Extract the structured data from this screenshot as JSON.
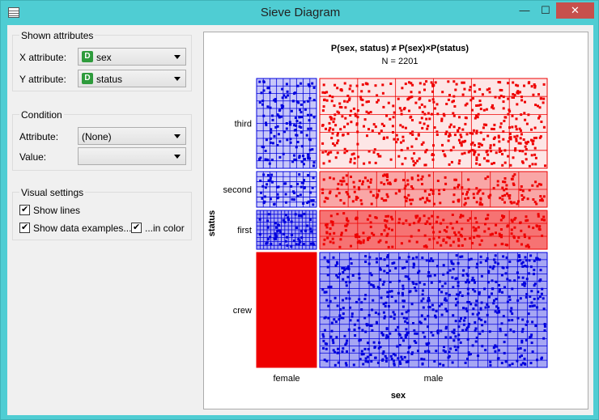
{
  "window": {
    "title": "Sieve Diagram",
    "min_glyph": "—",
    "max_glyph": "☐",
    "close_glyph": "✕"
  },
  "shown_attributes": {
    "title": "Shown attributes",
    "x_label": "X attribute:",
    "x_value": "sex",
    "y_label": "Y attribute:",
    "y_value": "status",
    "discrete_badge": "D"
  },
  "condition": {
    "title": "Condition",
    "attribute_label": "Attribute:",
    "attribute_value": "(None)",
    "value_label": "Value:",
    "value_value": ""
  },
  "visual_settings": {
    "title": "Visual settings",
    "show_lines": "Show lines",
    "show_examples": "Show data examples...",
    "in_color": "...in color"
  },
  "chart_data": {
    "type": "sieve",
    "title": "P(sex, status) ≠ P(sex)×P(status)",
    "subtitle": "N = 2201",
    "xlabel": "sex",
    "ylabel": "status",
    "x_categories": [
      "female",
      "male"
    ],
    "y_categories": [
      "third",
      "second",
      "first",
      "crew"
    ],
    "colors": {
      "above": "#0000dd",
      "below": "#ee0000"
    },
    "cells": [
      {
        "x": "female",
        "y": "third",
        "color": "blue",
        "intensity": 0.22,
        "lines": [
          8,
          11
        ]
      },
      {
        "x": "male",
        "y": "third",
        "color": "red",
        "intensity": 0.1,
        "lines": [
          5,
          4
        ]
      },
      {
        "x": "female",
        "y": "second",
        "color": "blue",
        "intensity": 0.2,
        "lines": [
          8,
          6
        ]
      },
      {
        "x": "male",
        "y": "second",
        "color": "red",
        "intensity": 0.35,
        "lines": [
          7,
          1
        ]
      },
      {
        "x": "female",
        "y": "first",
        "color": "blue",
        "intensity": 0.35,
        "lines": [
          16,
          9
        ]
      },
      {
        "x": "male",
        "y": "first",
        "color": "red",
        "intensity": 0.55,
        "lines": [
          5,
          2
        ]
      },
      {
        "x": "female",
        "y": "crew",
        "color": "red",
        "intensity": 1.0,
        "lines": [
          0,
          1
        ]
      },
      {
        "x": "male",
        "y": "crew",
        "color": "blue",
        "intensity": 0.35,
        "lines": [
          22,
          15
        ]
      }
    ]
  }
}
